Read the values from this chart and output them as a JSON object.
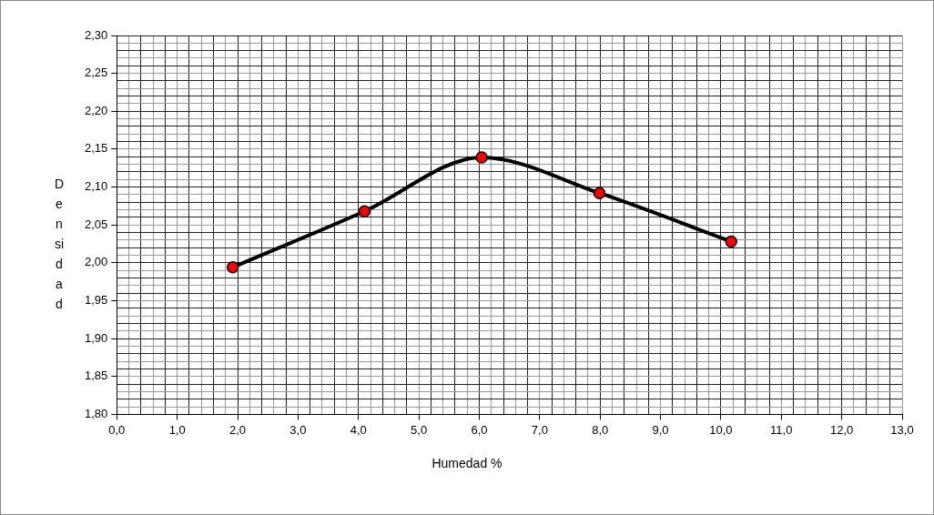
{
  "chart_data": {
    "type": "line",
    "xlabel": "Humedad %",
    "ylabel": "Densidad",
    "x": [
      1.92,
      4.1,
      6.04,
      7.99,
      10.17
    ],
    "series": [
      {
        "color": "#000000",
        "colors": [
          "#ff0000",
          "#ff0000",
          "#ff0000",
          "#ff0000",
          "#ff0000"
        ],
        "values": [
          1.994,
          2.068,
          2.139,
          2.092,
          2.028
        ]
      }
    ],
    "xlim": [
      0,
      13
    ],
    "ylim": [
      1.8,
      2.3
    ],
    "xticks": [
      {
        "value": 0,
        "label": "0,0"
      },
      {
        "value": 0.2,
        "label": null
      },
      {
        "value": 0.4,
        "label": null
      },
      {
        "value": 0.6,
        "label": null
      },
      {
        "value": 0.8,
        "label": null
      },
      {
        "value": 1,
        "label": "1,0"
      },
      {
        "value": 1.2,
        "label": null
      },
      {
        "value": 1.4,
        "label": null
      },
      {
        "value": 1.6,
        "label": null
      },
      {
        "value": 1.8,
        "label": null
      },
      {
        "value": 2,
        "label": "2,0"
      },
      {
        "value": 2.2,
        "label": null
      },
      {
        "value": 2.4,
        "label": null
      },
      {
        "value": 2.6,
        "label": null
      },
      {
        "value": 2.8,
        "label": null
      },
      {
        "value": 3,
        "label": "3,0"
      },
      {
        "value": 3.2,
        "label": null
      },
      {
        "value": 3.4,
        "label": null
      },
      {
        "value": 3.6,
        "label": null
      },
      {
        "value": 3.8,
        "label": null
      },
      {
        "value": 4,
        "label": "4,0"
      },
      {
        "value": 4.2,
        "label": null
      },
      {
        "value": 4.4,
        "label": null
      },
      {
        "value": 4.6,
        "label": null
      },
      {
        "value": 4.8,
        "label": null
      },
      {
        "value": 5,
        "label": "5,0"
      },
      {
        "value": 5.2,
        "label": null
      },
      {
        "value": 5.4,
        "label": null
      },
      {
        "value": 5.6,
        "label": null
      },
      {
        "value": 5.8,
        "label": null
      },
      {
        "value": 6,
        "label": "6,0"
      },
      {
        "value": 6.2,
        "label": null
      },
      {
        "value": 6.4,
        "label": null
      },
      {
        "value": 6.6,
        "label": null
      },
      {
        "value": 6.8,
        "label": null
      },
      {
        "value": 7,
        "label": "7,0"
      },
      {
        "value": 7.2,
        "label": null
      },
      {
        "value": 7.4,
        "label": null
      },
      {
        "value": 7.6,
        "label": null
      },
      {
        "value": 7.8,
        "label": null
      },
      {
        "value": 8,
        "label": "8,0"
      },
      {
        "value": 8.2,
        "label": null
      },
      {
        "value": 8.4,
        "label": null
      },
      {
        "value": 8.6,
        "label": null
      },
      {
        "value": 8.8,
        "label": null
      },
      {
        "value": 9,
        "label": "9,0"
      },
      {
        "value": 9.2,
        "label": null
      },
      {
        "value": 9.4,
        "label": null
      },
      {
        "value": 9.6,
        "label": null
      },
      {
        "value": 9.8,
        "label": null
      },
      {
        "value": 10,
        "label": "10,0"
      },
      {
        "value": 10.2,
        "label": null
      },
      {
        "value": 10.4,
        "label": null
      },
      {
        "value": 10.6,
        "label": null
      },
      {
        "value": 10.8,
        "label": null
      },
      {
        "value": 11,
        "label": "11,0"
      },
      {
        "value": 11.2,
        "label": null
      },
      {
        "value": 11.4,
        "label": null
      },
      {
        "value": 11.6,
        "label": null
      },
      {
        "value": 11.8,
        "label": null
      },
      {
        "value": 12,
        "label": "12,0"
      },
      {
        "value": 12.2,
        "label": null
      },
      {
        "value": 12.4,
        "label": null
      },
      {
        "value": 12.6,
        "label": null
      },
      {
        "value": 12.8,
        "label": null
      },
      {
        "value": 13,
        "label": "13,0"
      }
    ],
    "yticks": [
      {
        "value": 1.8,
        "label": "1,80"
      },
      {
        "value": 1.81,
        "label": null
      },
      {
        "value": 1.82,
        "label": null
      },
      {
        "value": 1.83,
        "label": null
      },
      {
        "value": 1.84,
        "label": null
      },
      {
        "value": 1.85,
        "label": "1,85"
      },
      {
        "value": 1.86,
        "label": null
      },
      {
        "value": 1.87,
        "label": null
      },
      {
        "value": 1.88,
        "label": null
      },
      {
        "value": 1.89,
        "label": null
      },
      {
        "value": 1.9,
        "label": "1,90"
      },
      {
        "value": 1.91,
        "label": null
      },
      {
        "value": 1.92,
        "label": null
      },
      {
        "value": 1.93,
        "label": null
      },
      {
        "value": 1.94,
        "label": null
      },
      {
        "value": 1.95,
        "label": "1,95"
      },
      {
        "value": 1.96,
        "label": null
      },
      {
        "value": 1.97,
        "label": null
      },
      {
        "value": 1.98,
        "label": null
      },
      {
        "value": 1.99,
        "label": null
      },
      {
        "value": 2,
        "label": "2,00"
      },
      {
        "value": 2.01,
        "label": null
      },
      {
        "value": 2.02,
        "label": null
      },
      {
        "value": 2.03,
        "label": null
      },
      {
        "value": 2.04,
        "label": null
      },
      {
        "value": 2.05,
        "label": "2,05"
      },
      {
        "value": 2.06,
        "label": null
      },
      {
        "value": 2.07,
        "label": null
      },
      {
        "value": 2.08,
        "label": null
      },
      {
        "value": 2.09,
        "label": null
      },
      {
        "value": 2.1,
        "label": "2,10"
      },
      {
        "value": 2.11,
        "label": null
      },
      {
        "value": 2.12,
        "label": null
      },
      {
        "value": 2.13,
        "label": null
      },
      {
        "value": 2.14,
        "label": null
      },
      {
        "value": 2.15,
        "label": "2,15"
      },
      {
        "value": 2.16,
        "label": null
      },
      {
        "value": 2.17,
        "label": null
      },
      {
        "value": 2.18,
        "label": null
      },
      {
        "value": 2.19,
        "label": null
      },
      {
        "value": 2.2,
        "label": "2,20"
      },
      {
        "value": 2.21,
        "label": null
      },
      {
        "value": 2.22,
        "label": null
      },
      {
        "value": 2.23,
        "label": null
      },
      {
        "value": 2.24,
        "label": null
      },
      {
        "value": 2.25,
        "label": "2,25"
      },
      {
        "value": 2.26,
        "label": null
      },
      {
        "value": 2.27,
        "label": null
      },
      {
        "value": 2.28,
        "label": null
      },
      {
        "value": 2.29,
        "label": null
      },
      {
        "value": 2.3,
        "label": "2,30"
      }
    ],
    "grid": true,
    "marker": "circle",
    "line_style": "solid"
  }
}
